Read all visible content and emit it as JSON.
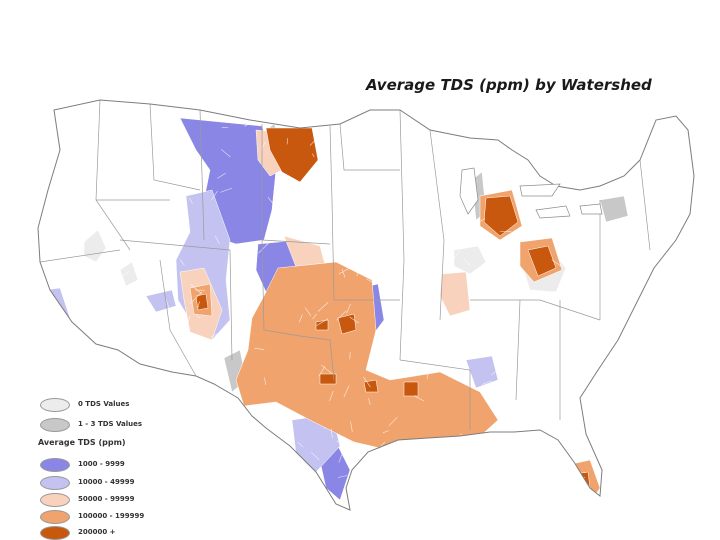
{
  "title": "Average TDS (ppm) by Watershed",
  "colors": {
    "land": "#ffffff",
    "outline": "#8c8c8c",
    "nodata": "#ececec",
    "few": "#c8c8c8",
    "c1": "#8a86e6",
    "c2": "#c3c2f1",
    "c3": "#f8d2bc",
    "c4": "#f0a36c",
    "c5": "#c9580f"
  },
  "legend": {
    "zero_label": "0 TDS Values",
    "few_label": "1 - 3 TDS Values",
    "heading": "Average TDS (ppm)",
    "classes": [
      {
        "label": "1000 - 9999",
        "color": "#8a86e6"
      },
      {
        "label": "10000 - 49999",
        "color": "#c3c2f1"
      },
      {
        "label": "50000 - 99999",
        "color": "#f8d2bc"
      },
      {
        "label": "100000 - 199999",
        "color": "#f0a36c"
      },
      {
        "label": "200000 +",
        "color": "#c9580f"
      }
    ]
  }
}
